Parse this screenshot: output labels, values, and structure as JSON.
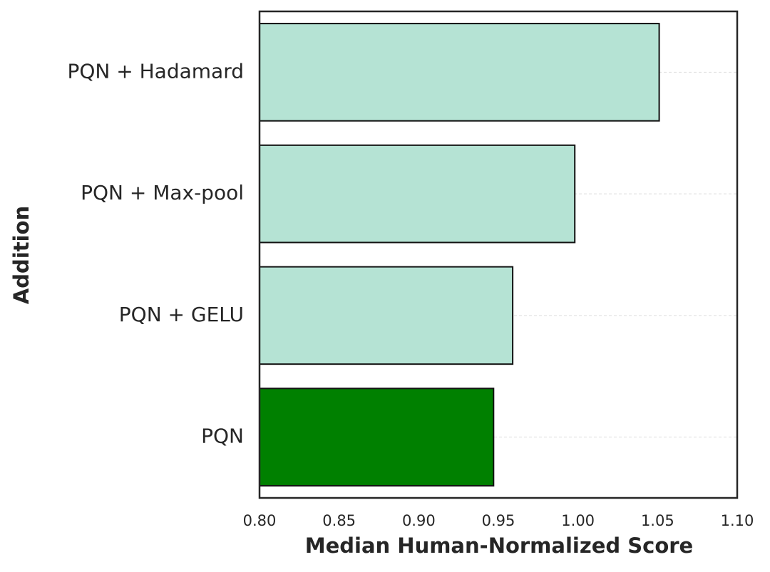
{
  "chart_data": {
    "type": "barh",
    "xlabel": "Median Human-Normalized Score",
    "ylabel": "Addition",
    "categories": [
      "PQN + Hadamard",
      "PQN + Max-pool",
      "PQN + GELU",
      "PQN"
    ],
    "values": [
      1.051,
      0.998,
      0.959,
      0.947
    ],
    "colors": [
      "#b5e3d4",
      "#b5e3d4",
      "#b5e3d4",
      "#008000"
    ],
    "xlim": [
      0.8,
      1.1
    ],
    "xticks": [
      {
        "value": 0.8,
        "label": "0.80"
      },
      0.85,
      {
        "value": 0.9,
        "label": "0.90"
      },
      0.95,
      {
        "value": 1.0,
        "label": "1.00"
      },
      1.05,
      {
        "value": 1.1,
        "label": "1.10"
      }
    ],
    "grid": true
  }
}
